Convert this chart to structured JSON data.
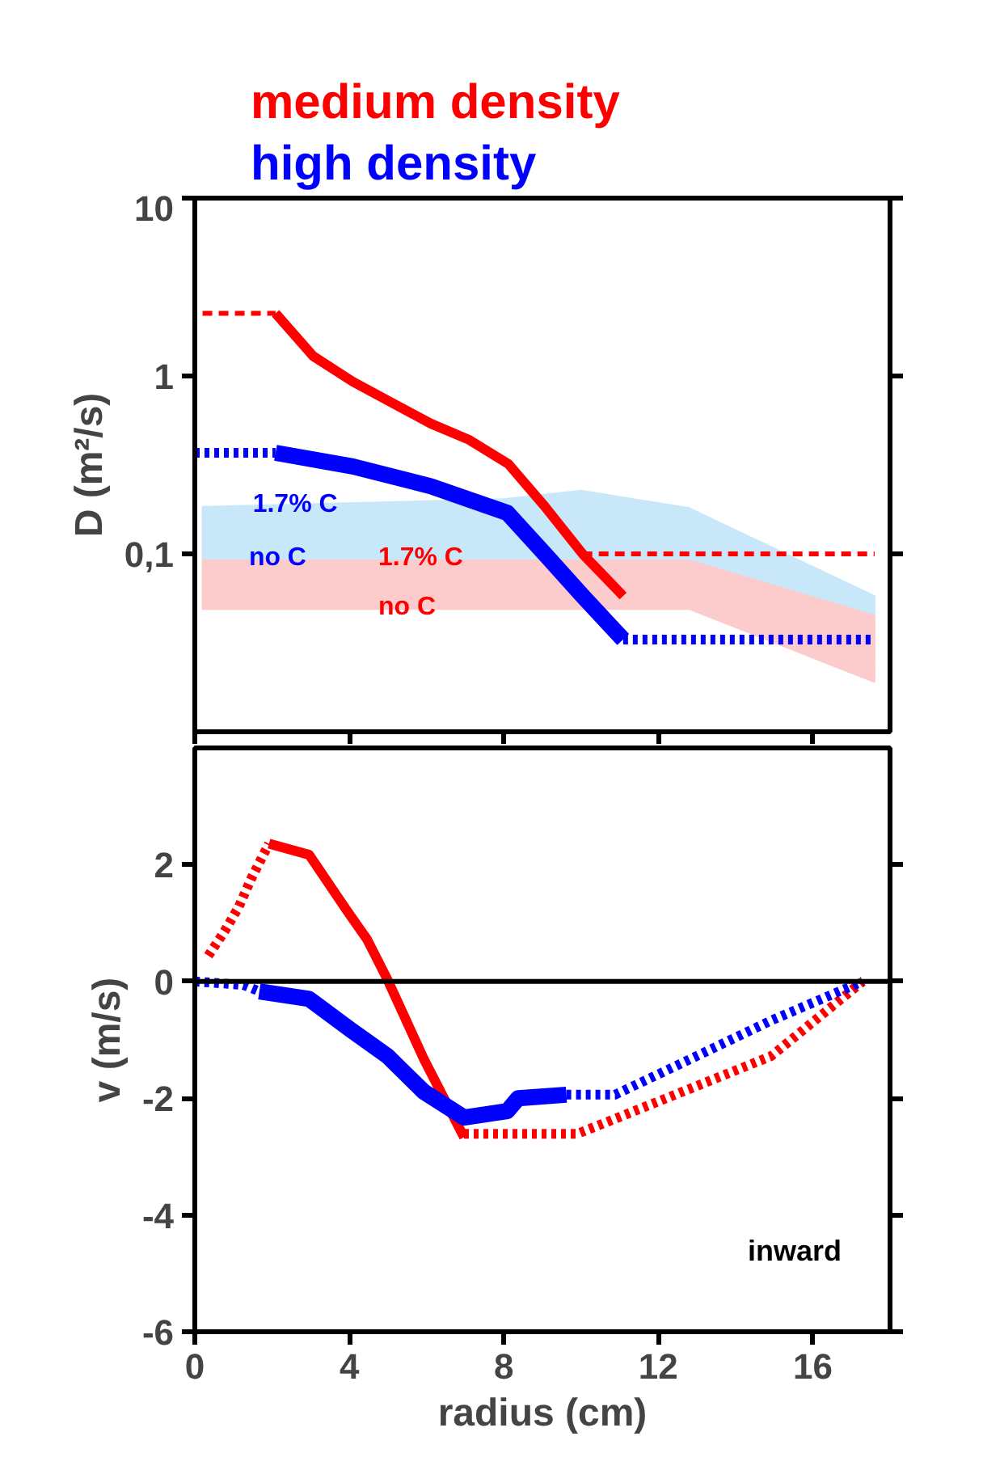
{
  "chart_data": [
    {
      "type": "line",
      "ylabel": "D (m²/s)",
      "legend": "top",
      "log": "y",
      "tick_labels": "y",
      "grid": false,
      "xlim": [
        0,
        18
      ],
      "xticks": [
        0,
        4,
        8,
        12,
        16
      ],
      "ylim": [
        0.01,
        10
      ],
      "yticks": [
        10,
        1,
        {
          "value": 0.1,
          "label": "0,1"
        }
      ],
      "series": [
        {
          "color": "#fccccc",
          "x": [
            0.2,
            8,
            10,
            12.8,
            17.6
          ],
          "values": [
            null,
            null,
            null,
            null,
            null
          ],
          "upper": [
            0.094,
            0.094,
            0.094,
            0.094,
            0.046
          ],
          "lower": [
            0.049,
            0.049,
            0.049,
            0.049,
            0.019
          ]
        },
        {
          "color": "#c8e8fa",
          "x": [
            0.2,
            8,
            10,
            12.8,
            17.6
          ],
          "values": [
            null,
            null,
            null,
            null,
            null
          ],
          "upper": [
            0.184,
            0.203,
            0.227,
            0.181,
            0.058
          ],
          "lower": [
            0.094,
            0.094,
            0.094,
            0.094,
            0.046
          ]
        },
        {
          "name": "medium density",
          "color": "#ff0000",
          "line_style": "solid",
          "x": [
            2.09,
            3.07,
            4.09,
            5.09,
            6.11,
            7.08,
            8.12,
            9.06,
            10.04,
            11.09
          ],
          "values": [
            2.25,
            1.29,
            0.93,
            0.71,
            0.54,
            0.44,
            0.32,
            0.185,
            0.1,
            0.058
          ]
        },
        {
          "color": "#ff0000",
          "line_style": "dashed",
          "x": [
            0.2,
            2.09
          ],
          "values": [
            2.25,
            2.25
          ]
        },
        {
          "color": "#ff0000",
          "line_style": "dashed",
          "x": [
            10.04,
            17.6
          ],
          "values": [
            0.1,
            0.1
          ]
        },
        {
          "name": "high density",
          "color": "#0000ff",
          "line_style": "solid",
          "x": [
            2.09,
            4.09,
            6.11,
            8.09,
            9.06,
            10.04,
            11.09
          ],
          "values": [
            0.37,
            0.31,
            0.24,
            0.17,
            0.1,
            0.058,
            0.033
          ]
        },
        {
          "color": "#0000ff",
          "line_style": "dotted",
          "x": [
            0,
            2.09
          ],
          "values": [
            0.37,
            0.37
          ]
        },
        {
          "color": "#0000ff",
          "line_style": "dotted",
          "x": [
            11.09,
            17.6
          ],
          "values": [
            0.033,
            0.033
          ]
        }
      ],
      "annotations": [
        {
          "text": "1.7% C",
          "x": 1.5,
          "y": 0.19
        },
        {
          "text": "no C",
          "x": 1.4,
          "y": 0.095
        },
        {
          "text": "1.7% C",
          "x": 4.75,
          "y": 0.095
        },
        {
          "text": "no C",
          "x": 4.75,
          "y": 0.05
        }
      ]
    },
    {
      "type": "line",
      "xlabel": "radius (cm)",
      "ylabel": "v (m/s)",
      "grid": false,
      "xlim": [
        0,
        18
      ],
      "xticks": [
        0,
        4,
        8,
        12,
        16
      ],
      "ylim": [
        -6,
        4
      ],
      "yticks": [
        2,
        0,
        -2,
        -4,
        -6
      ],
      "ref_lines": [
        {
          "axis": "y",
          "value": 0,
          "color": "#000000"
        }
      ],
      "series": [
        {
          "color": "#ff0000",
          "line_style": "dotted",
          "x": [
            0.35,
            0.77,
            1.14,
            1.46,
            1.92
          ],
          "values": [
            0.44,
            0.86,
            1.28,
            1.76,
            2.36
          ]
        },
        {
          "color": "#ff0000",
          "line_style": "solid",
          "x": [
            1.92,
            2.96,
            3.93,
            4.46,
            4.99,
            5.93,
            6.97
          ],
          "values": [
            2.36,
            2.17,
            1.22,
            0.72,
            0.03,
            -1.33,
            -2.67
          ]
        },
        {
          "color": "#ff0000",
          "line_style": "dotted",
          "x": [
            6.97,
            9.9,
            10.74,
            14.92,
            17.29
          ],
          "values": [
            -2.61,
            -2.61,
            -2.39,
            -1.28,
            0
          ]
        },
        {
          "color": "#0000ff",
          "line_style": "dotted",
          "x": [
            0,
            1.26,
            1.67
          ],
          "values": [
            0,
            -0.06,
            -0.17
          ]
        },
        {
          "color": "#0000ff",
          "line_style": "solid",
          "x": [
            1.67,
            2.96,
            4.04,
            4.99,
            5.93,
            6.97,
            8.09,
            8.37,
            9.62
          ],
          "values": [
            -0.17,
            -0.3,
            -0.83,
            -1.28,
            -1.89,
            -2.33,
            -2.22,
            -2.0,
            -1.94
          ]
        },
        {
          "color": "#0000ff",
          "line_style": "dotted",
          "x": [
            9.62,
            10.88,
            12.83,
            14.92,
            17.29
          ],
          "values": [
            -1.94,
            -1.94,
            -1.33,
            -0.67,
            0
          ]
        }
      ],
      "annotations": [
        "inward"
      ]
    }
  ]
}
